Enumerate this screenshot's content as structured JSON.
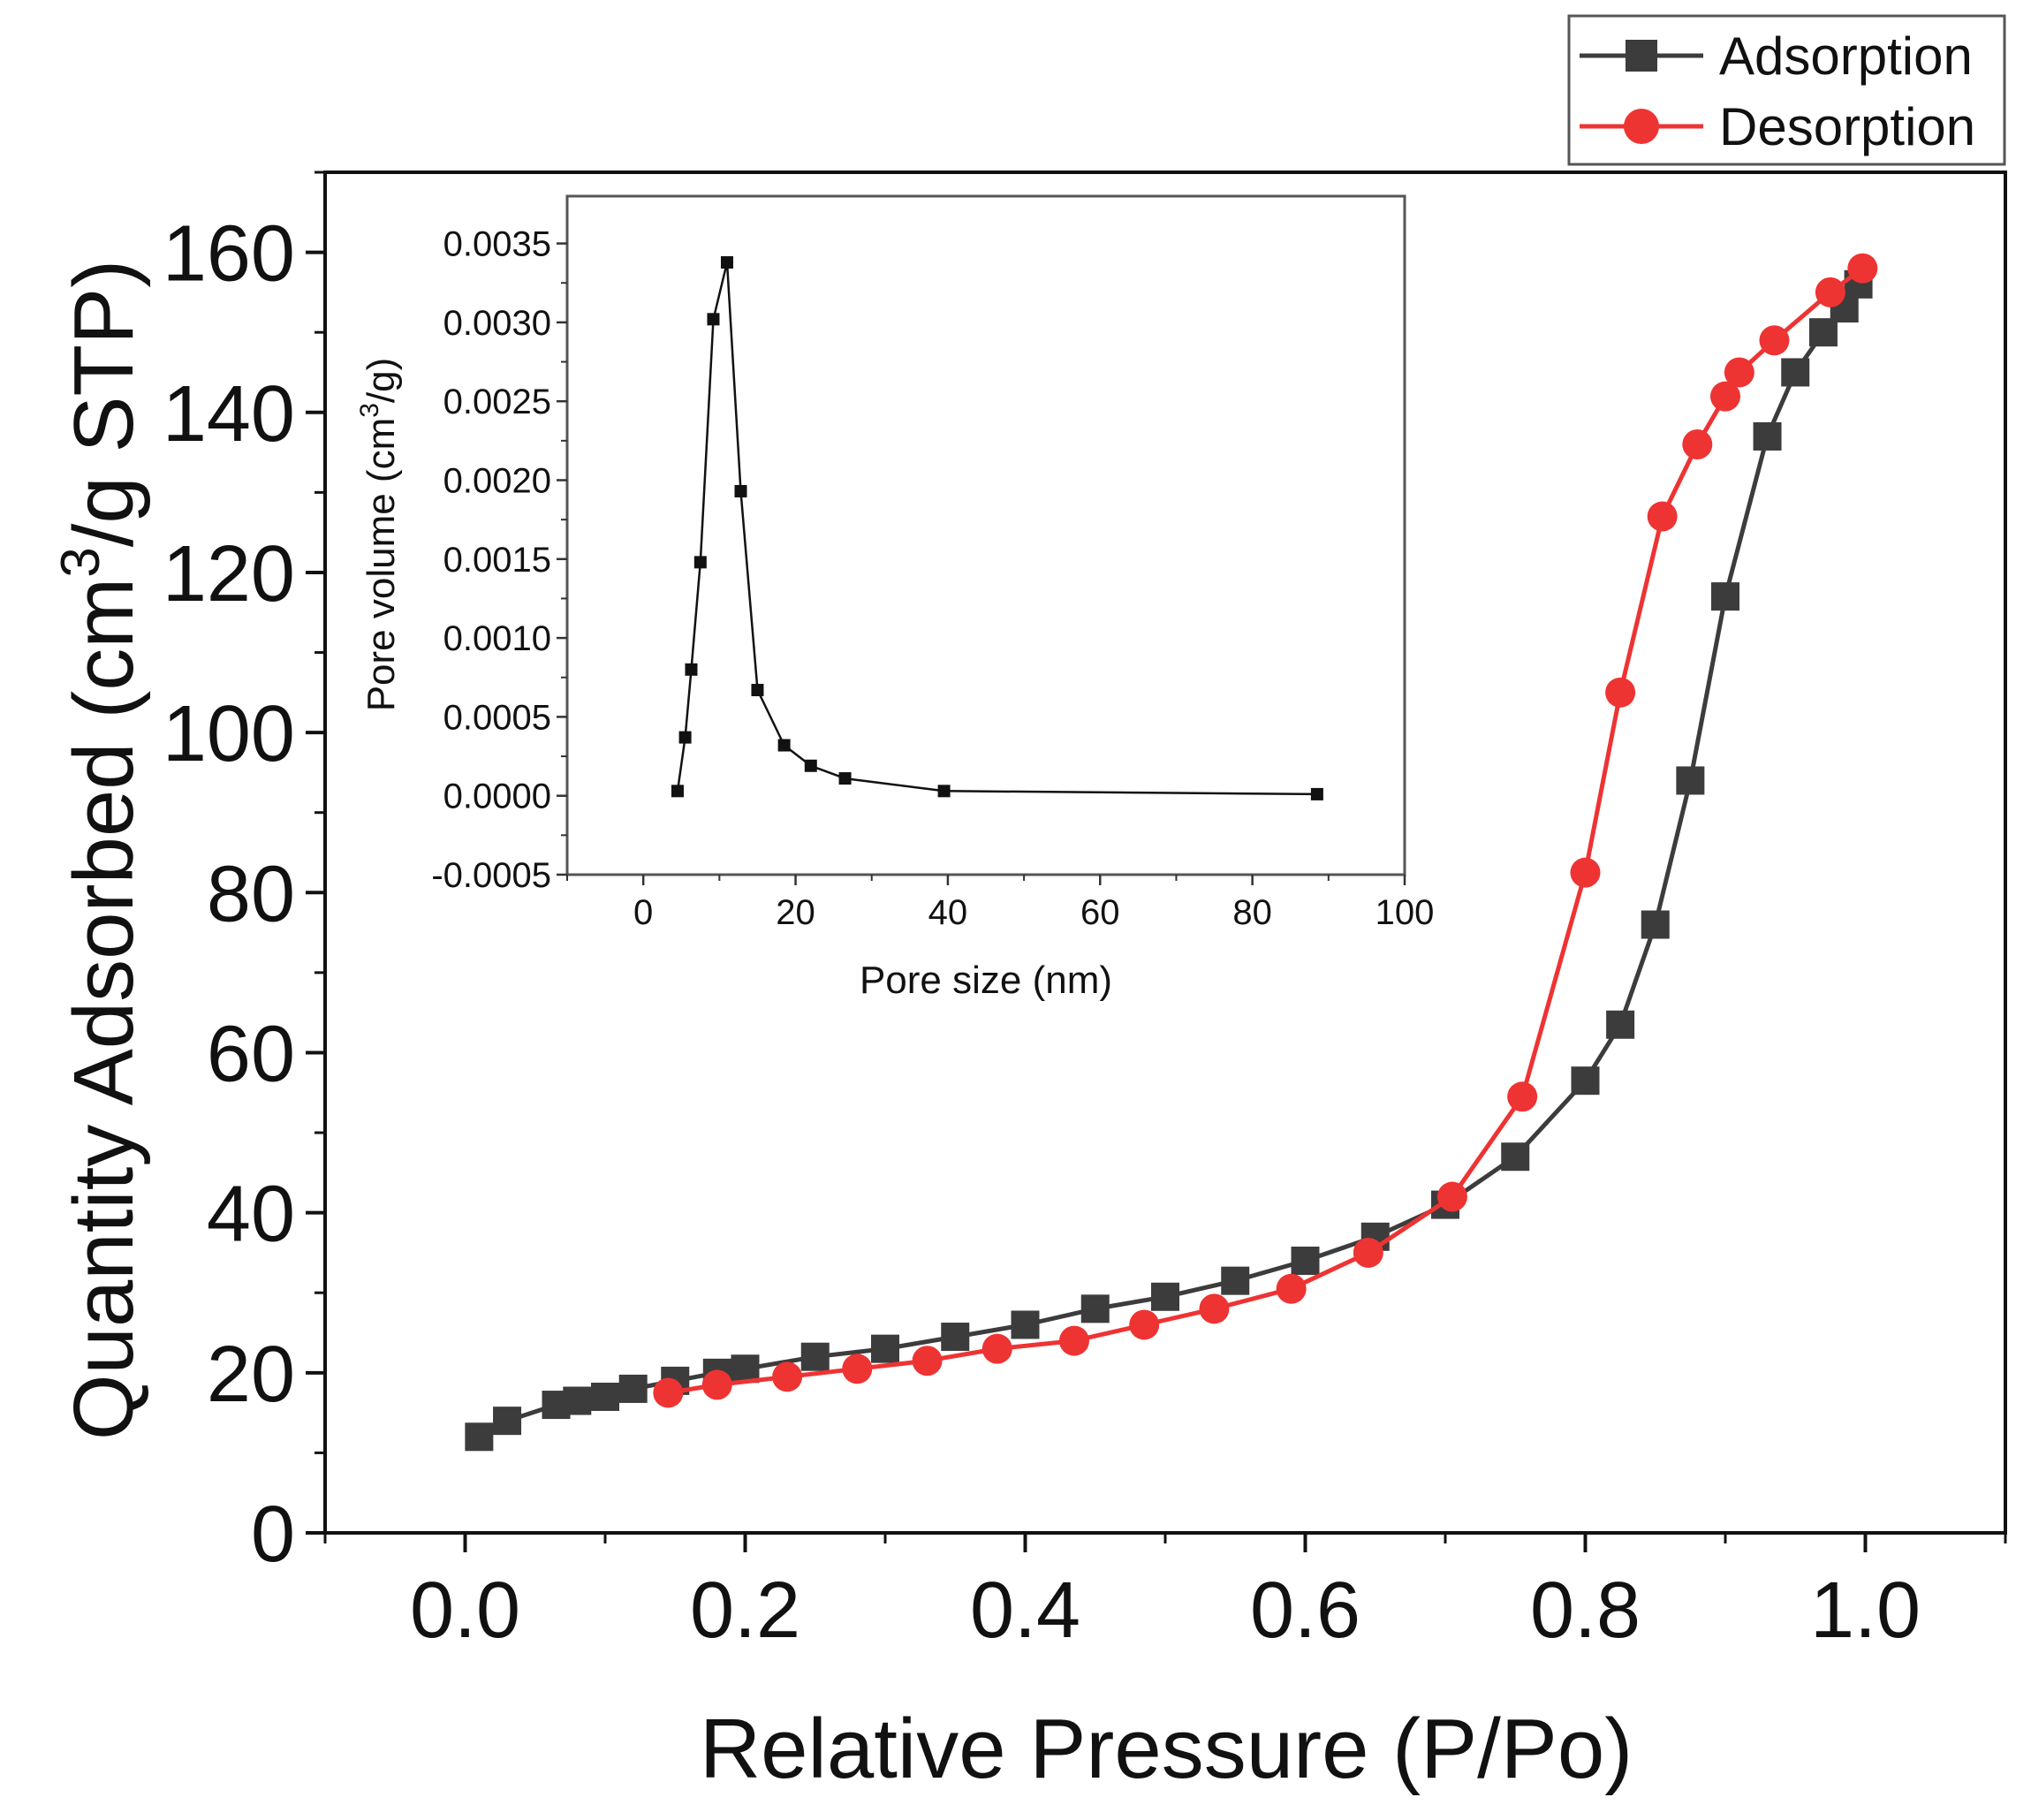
{
  "chart_data": [
    {
      "type": "line",
      "xlabel": "Relative Pressure (P/Po)",
      "ylabel_main": "Quantity Adsorbed (cm",
      "ylabel_sup": "3",
      "ylabel_tail": "/g STP)",
      "xlim": [
        -0.1,
        1.1
      ],
      "ylim": [
        0,
        170
      ],
      "xticks": [
        0.0,
        0.2,
        0.4,
        0.6,
        0.8,
        1.0
      ],
      "xtick_labels": [
        "0.0",
        "0.2",
        "0.4",
        "0.6",
        "0.8",
        "1.0"
      ],
      "yticks": [
        0,
        20,
        40,
        60,
        80,
        100,
        120,
        140,
        160
      ],
      "ytick_labels": [
        "0",
        "20",
        "40",
        "60",
        "80",
        "100",
        "120",
        "140",
        "160"
      ],
      "grid": false,
      "legend_position": "top-right",
      "series": [
        {
          "name": "Adsorption",
          "color": "#3c3c3c",
          "marker": "square",
          "x": [
            0.01,
            0.03,
            0.065,
            0.08,
            0.1,
            0.12,
            0.15,
            0.18,
            0.2,
            0.25,
            0.3,
            0.35,
            0.4,
            0.45,
            0.5,
            0.55,
            0.6,
            0.65,
            0.7,
            0.75,
            0.8,
            0.825,
            0.85,
            0.875,
            0.9,
            0.93,
            0.95,
            0.97,
            0.985,
            0.995
          ],
          "y": [
            12,
            14,
            16,
            16.5,
            17,
            18,
            19,
            20,
            20.5,
            22,
            23,
            24.5,
            26,
            28,
            29.5,
            31.5,
            34,
            37,
            41,
            47,
            56.5,
            63.5,
            76,
            94,
            117,
            137,
            145,
            150,
            153,
            156
          ]
        },
        {
          "name": "Desorption",
          "color": "#ee3333",
          "marker": "circle",
          "x": [
            0.145,
            0.18,
            0.23,
            0.28,
            0.33,
            0.38,
            0.435,
            0.485,
            0.535,
            0.59,
            0.645,
            0.705,
            0.755,
            0.8,
            0.825,
            0.855,
            0.88,
            0.9,
            0.91,
            0.935,
            0.975,
            0.998
          ],
          "y": [
            17.5,
            18.5,
            19.5,
            20.5,
            21.5,
            23,
            24,
            26,
            28,
            30.5,
            35,
            42,
            54.5,
            82.5,
            105,
            127,
            136,
            142,
            145,
            149,
            155,
            158
          ]
        }
      ]
    },
    {
      "type": "line",
      "xlabel": "Pore size (nm)",
      "ylabel_main": "Pore volume (cm",
      "ylabel_sup": "3",
      "ylabel_tail": "/g)",
      "xlim": [
        -10,
        100
      ],
      "ylim": [
        -0.0005,
        0.0038
      ],
      "xticks": [
        0,
        20,
        40,
        60,
        80,
        100
      ],
      "xtick_labels": [
        "0",
        "20",
        "40",
        "60",
        "80",
        "100"
      ],
      "yticks": [
        -0.0005,
        0,
        0.0005,
        0.001,
        0.0015,
        0.002,
        0.0025,
        0.003,
        0.0035
      ],
      "ytick_labels": [
        "-0.0005",
        "0.0000",
        "0.0005",
        "0.0010",
        "0.0015",
        "0.0020",
        "0.0025",
        "0.0030",
        "0.0035"
      ],
      "grid": false,
      "series": [
        {
          "color": "#111111",
          "marker": "square",
          "x": [
            4.5,
            5.5,
            6.3,
            7.5,
            9.2,
            11,
            12.8,
            15,
            18.5,
            22,
            26.5,
            39.5,
            88.5
          ],
          "y": [
            3e-05,
            0.00037,
            0.0008,
            0.00148,
            0.00302,
            0.00338,
            0.00193,
            0.00067,
            0.00032,
            0.00019,
            0.00011,
            3e-05,
            1e-05
          ]
        }
      ]
    }
  ]
}
